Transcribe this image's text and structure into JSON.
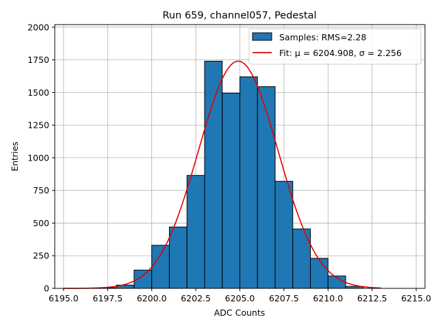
{
  "chart_data": {
    "type": "bar",
    "title": "Run 659, channel057, Pedestal",
    "xlabel": "ADC Counts",
    "ylabel": "Entries",
    "xlim": [
      6194.5,
      6215.5
    ],
    "ylim": [
      0,
      2020
    ],
    "xticks": [
      6195.0,
      6197.5,
      6200.0,
      6202.5,
      6205.0,
      6207.5,
      6210.0,
      6212.5,
      6215.0
    ],
    "xtick_labels": [
      "6195.0",
      "6197.5",
      "6200.0",
      "6202.5",
      "6205.0",
      "6207.5",
      "6210.0",
      "6212.5",
      "6215.0"
    ],
    "yticks": [
      0,
      250,
      500,
      750,
      1000,
      1250,
      1500,
      1750,
      2000
    ],
    "ytick_labels": [
      "0",
      "250",
      "500",
      "750",
      "1000",
      "1250",
      "1500",
      "1750",
      "2000"
    ],
    "grid": true,
    "legend_position": "top-right",
    "histogram": {
      "name": "Samples: RMS=2.28",
      "color": "#1f77b4",
      "edge_color": "#000000",
      "bins": [
        {
          "x0": 6197.0,
          "x1": 6198.0,
          "value": 5
        },
        {
          "x0": 6198.0,
          "x1": 6199.0,
          "value": 25
        },
        {
          "x0": 6199.0,
          "x1": 6200.0,
          "value": 140
        },
        {
          "x0": 6200.0,
          "x1": 6201.0,
          "value": 330
        },
        {
          "x0": 6201.0,
          "x1": 6202.0,
          "value": 470
        },
        {
          "x0": 6202.0,
          "x1": 6203.0,
          "value": 865
        },
        {
          "x0": 6203.0,
          "x1": 6204.0,
          "value": 1740
        },
        {
          "x0": 6204.0,
          "x1": 6205.0,
          "value": 1495
        },
        {
          "x0": 6205.0,
          "x1": 6206.0,
          "value": 1620
        },
        {
          "x0": 6206.0,
          "x1": 6207.0,
          "value": 1545
        },
        {
          "x0": 6207.0,
          "x1": 6208.0,
          "value": 820
        },
        {
          "x0": 6208.0,
          "x1": 6209.0,
          "value": 455
        },
        {
          "x0": 6209.0,
          "x1": 6210.0,
          "value": 230
        },
        {
          "x0": 6210.0,
          "x1": 6211.0,
          "value": 95
        },
        {
          "x0": 6211.0,
          "x1": 6212.0,
          "value": 15
        }
      ]
    },
    "fit": {
      "name": "Fit: μ = 6204.908, σ = 2.256",
      "color": "#e00000",
      "mu": 6204.908,
      "sigma": 2.256,
      "amplitude": 1740,
      "x_range": [
        6195.0,
        6213.0
      ]
    }
  }
}
